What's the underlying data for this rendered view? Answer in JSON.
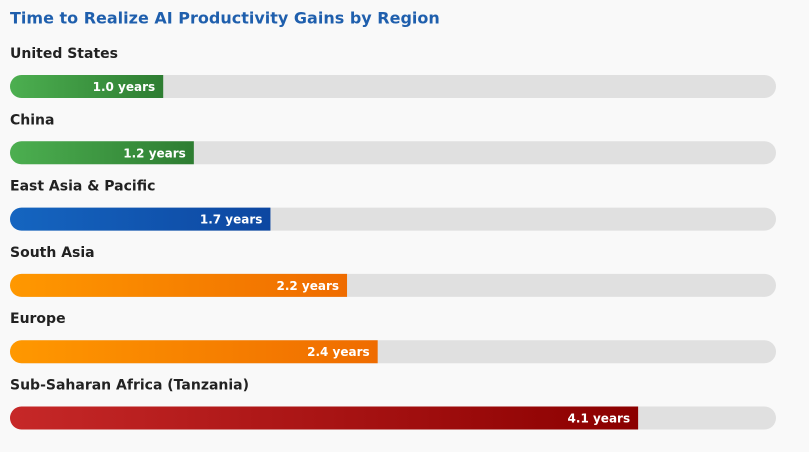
{
  "chart_data": {
    "type": "bar",
    "title": "Time to Realize AI Productivity Gains by Region",
    "categories": [
      "United States",
      "China",
      "East Asia & Pacific",
      "South Asia",
      "Europe",
      "Sub-Saharan Africa (Tanzania)"
    ],
    "values": [
      1.0,
      1.2,
      1.7,
      2.2,
      2.4,
      4.1
    ],
    "value_labels": [
      "1.0 years",
      "1.2 years",
      "1.7 years",
      "2.2 years",
      "2.4 years",
      "4.1 years"
    ],
    "colors": [
      [
        "#4caf50",
        "#2e7d32"
      ],
      [
        "#4caf50",
        "#2e7d32"
      ],
      [
        "#1565c0",
        "#0d47a1"
      ],
      [
        "#ff9800",
        "#ef6c00"
      ],
      [
        "#ff9800",
        "#ef6c00"
      ],
      [
        "#c62828",
        "#8b0000"
      ]
    ],
    "track_color": "#e0e0e0",
    "xlim": [
      0,
      5
    ]
  }
}
